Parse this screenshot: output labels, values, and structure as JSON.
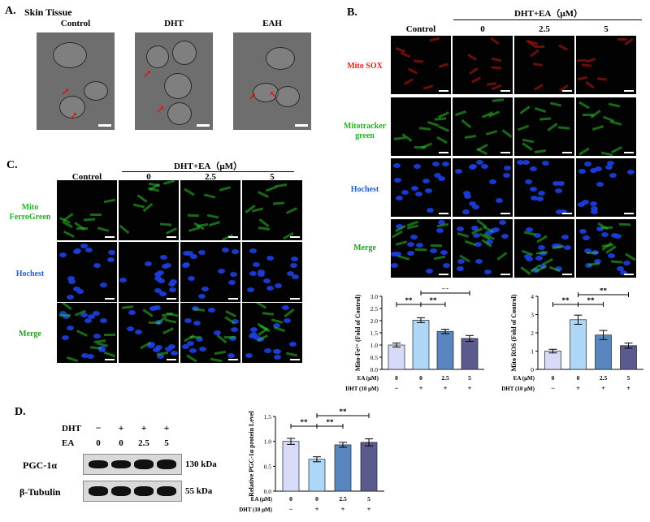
{
  "panelA": {
    "label": "A.",
    "subtitle": "Skin Tissue",
    "headers": [
      "Control",
      "DHT",
      "EAH"
    ]
  },
  "panelB": {
    "label": "B.",
    "group_header": "DHT+EA（μM）",
    "col_headers": [
      "Control",
      "0",
      "2.5",
      "5"
    ],
    "rows": [
      {
        "label": "Mito SOX",
        "color": "#e02020"
      },
      {
        "label": "Mitotracker green",
        "color": "#20b020"
      },
      {
        "label": "Hochest",
        "color": "#2060d0"
      },
      {
        "label": "Merge",
        "color": "#20a020"
      }
    ]
  },
  "panelC": {
    "label": "C.",
    "group_header": "DHT+EA（μM）",
    "col_headers": [
      "Control",
      "0",
      "2.5",
      "5"
    ],
    "rows": [
      {
        "label": "Mito FerroGreen",
        "color": "#20b020"
      },
      {
        "label": "Hochest",
        "color": "#2060d0"
      },
      {
        "label": "Merge",
        "color": "#20a020"
      }
    ]
  },
  "panelD": {
    "label": "D.",
    "treat_labels": [
      "DHT",
      "EA"
    ],
    "dht_row": [
      "−",
      "+",
      "+",
      "+"
    ],
    "ea_row": [
      "0",
      "0",
      "2.5",
      "5"
    ],
    "blots": [
      {
        "name": "PGC-1α",
        "kda": "130 kDa"
      },
      {
        "name": "β-Tubulin",
        "kda": "55 kDa"
      }
    ]
  },
  "sig_label": "**",
  "chart_data": [
    {
      "type": "bar",
      "ylabel": "Mito-Fe²⁺ (Fold of Control)",
      "ylim": [
        0,
        3.0
      ],
      "yticks": [
        "0.0",
        "0.5",
        "1.0",
        "1.5",
        "2.0",
        "2.5",
        "3.0"
      ],
      "categories": [
        "0",
        "0",
        "2.5",
        "5"
      ],
      "values": [
        1.0,
        2.02,
        1.56,
        1.27
      ],
      "errors": [
        0.08,
        0.1,
        0.09,
        0.12
      ],
      "colors": [
        "#d7dbf7",
        "#aed6f6",
        "#5a86c0",
        "#5b5a8f"
      ],
      "row_labels": [
        "EA (μM)",
        "DHT (10 μM)"
      ],
      "ea": [
        "0",
        "0",
        "2.5",
        "5"
      ],
      "dht": [
        "−",
        "+",
        "+",
        "+"
      ]
    },
    {
      "type": "bar",
      "ylabel": "Mito ROS (Fold of Control)",
      "ylim": [
        0,
        4
      ],
      "yticks": [
        "0",
        "1",
        "2",
        "3",
        "4"
      ],
      "categories": [
        "0",
        "0",
        "2.5",
        "5"
      ],
      "values": [
        1.0,
        2.72,
        1.88,
        1.3
      ],
      "errors": [
        0.1,
        0.25,
        0.25,
        0.14
      ],
      "colors": [
        "#d7dbf7",
        "#aed6f6",
        "#5a86c0",
        "#5b5a8f"
      ],
      "row_labels": [
        "EA (μM)",
        "DHT (10 μM)"
      ],
      "ea": [
        "0",
        "0",
        "2.5",
        "5"
      ],
      "dht": [
        "−",
        "+",
        "+",
        "+"
      ]
    },
    {
      "type": "bar",
      "ylabel": "Relative PGC-1α protein Level",
      "ylim": [
        0,
        1.5
      ],
      "yticks": [
        "0.0",
        "0.5",
        "1.0",
        "1.5"
      ],
      "categories": [
        "0",
        "0",
        "2.5",
        "5"
      ],
      "values": [
        1.0,
        0.64,
        0.93,
        0.98
      ],
      "errors": [
        0.06,
        0.05,
        0.05,
        0.07
      ],
      "colors": [
        "#d7dbf7",
        "#aed6f6",
        "#5a86c0",
        "#5b5a8f"
      ],
      "row_labels": [
        "EA (μM)",
        "DHT (10 μM)"
      ],
      "ea": [
        "0",
        "0",
        "2.5",
        "5"
      ],
      "dht": [
        "−",
        "+",
        "+",
        "+"
      ]
    }
  ]
}
